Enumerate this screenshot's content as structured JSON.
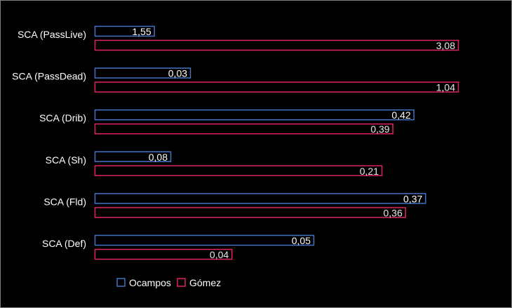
{
  "chart_data": {
    "type": "bar",
    "orientation": "horizontal",
    "title": "",
    "xlabel": "",
    "ylabel": "",
    "categories": [
      "SCA (PassLive)",
      "SCA (PassDead)",
      "SCA (Drib)",
      "SCA (Sh)",
      "SCA (Fld)",
      "SCA (Def)"
    ],
    "series": [
      {
        "name": "Ocampos",
        "color": "#4472c4",
        "labels": [
          "1,55",
          "0,03",
          "0,42",
          "0,08",
          "0,37",
          "0,05"
        ],
        "fill_fraction": [
          0.165,
          0.264,
          0.878,
          0.21,
          0.91,
          0.603
        ]
      },
      {
        "name": "Gómez",
        "color": "#e0245e",
        "labels": [
          "3,08",
          "1,04",
          "0,39",
          "0,21",
          "0,36",
          "0,04"
        ],
        "fill_fraction": [
          1.0,
          1.0,
          0.82,
          0.79,
          0.855,
          0.378
        ]
      }
    ],
    "grid": false,
    "legend": "bottom"
  }
}
